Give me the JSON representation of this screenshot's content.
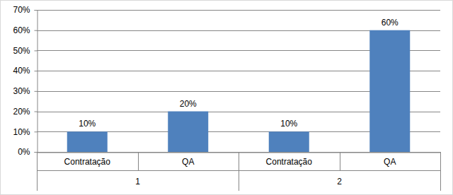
{
  "chart_data": {
    "type": "bar",
    "categories": [
      "Contratação",
      "QA",
      "Contratação",
      "QA"
    ],
    "group_labels": [
      "1",
      "2"
    ],
    "values": [
      10,
      20,
      10,
      60
    ],
    "value_labels": [
      "10%",
      "20%",
      "10%",
      "60%"
    ],
    "data_labels": true,
    "color": "#4f81bd",
    "ylim": [
      0,
      70
    ],
    "yticks": [
      {
        "value": 0,
        "label": "0%"
      },
      {
        "value": 10,
        "label": "10%"
      },
      {
        "value": 20,
        "label": "20%"
      },
      {
        "value": 30,
        "label": "30%"
      },
      {
        "value": 40,
        "label": "40%"
      },
      {
        "value": 50,
        "label": "50%"
      },
      {
        "value": 60,
        "label": "60%"
      },
      {
        "value": 70,
        "label": "70%"
      }
    ],
    "grid": true
  }
}
